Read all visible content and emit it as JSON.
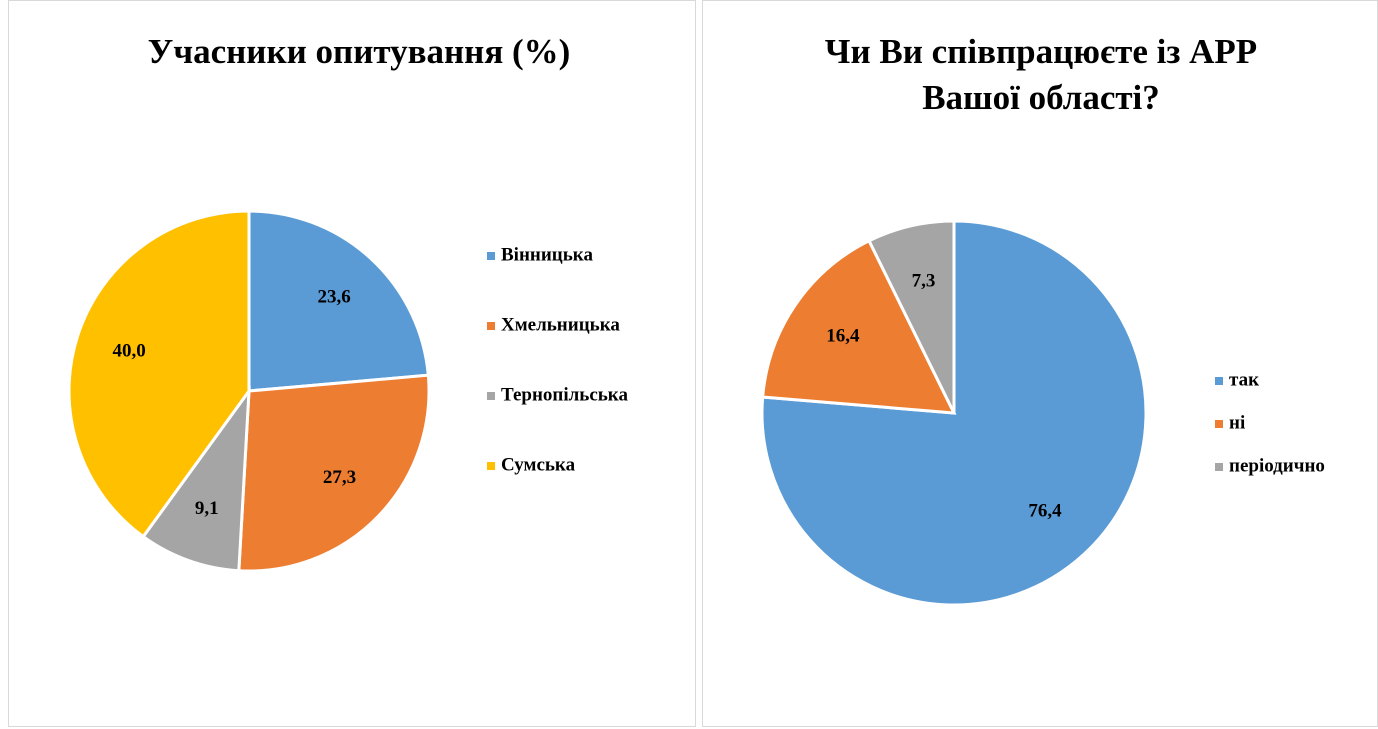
{
  "chart_data": [
    {
      "type": "pie",
      "title": "Учасники опитування (%)",
      "categories": [
        "Вінницька",
        "Хмельницька",
        "Тернопільська",
        "Сумська"
      ],
      "values": [
        23.6,
        27.3,
        9.1,
        40.0
      ],
      "value_labels": [
        "23,6",
        "27,3",
        "9,1",
        "40,0"
      ],
      "colors": [
        "#5b9bd5",
        "#ed7d31",
        "#a5a5a5",
        "#ffc000"
      ],
      "legend": "right"
    },
    {
      "type": "pie",
      "title": "Чи Ви співпрацюєте із АРР Вашої області?",
      "categories": [
        "так",
        "ні",
        "періодично"
      ],
      "values": [
        76.4,
        16.4,
        7.3
      ],
      "value_labels": [
        "76,4",
        "16,4",
        "7,3"
      ],
      "colors": [
        "#5b9bd5",
        "#ed7d31",
        "#a5a5a5"
      ],
      "legend": "right"
    }
  ]
}
